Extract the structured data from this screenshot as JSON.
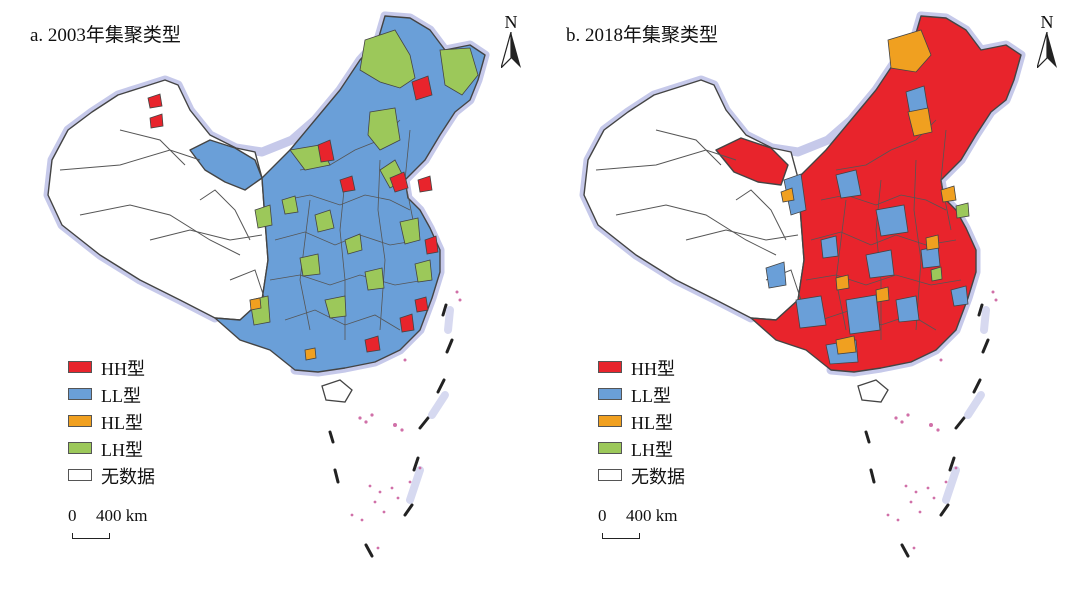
{
  "panels": [
    {
      "title": "a. 2003年集聚类型",
      "north_label": "N",
      "legend": [
        {
          "label": "HH型",
          "color": "#e8242c"
        },
        {
          "label": "LL型",
          "color": "#6a9fd8"
        },
        {
          "label": "HL型",
          "color": "#f0a020"
        },
        {
          "label": "LH型",
          "color": "#9cc85a"
        },
        {
          "label": "无数据",
          "color": "#ffffff"
        }
      ],
      "scale": {
        "start": "0",
        "end": "400 km"
      }
    },
    {
      "title": "b. 2018年集聚类型",
      "north_label": "N",
      "legend": [
        {
          "label": "HH型",
          "color": "#e8242c"
        },
        {
          "label": "LL型",
          "color": "#6a9fd8"
        },
        {
          "label": "HL型",
          "color": "#f0a020"
        },
        {
          "label": "LH型",
          "color": "#9cc85a"
        },
        {
          "label": "无数据",
          "color": "#ffffff"
        }
      ],
      "scale": {
        "start": "0",
        "end": "400 km"
      }
    }
  ],
  "style": {
    "halo_color": "#c6c9ea",
    "outline_color": "#444444",
    "island_color": "#d070a8"
  }
}
